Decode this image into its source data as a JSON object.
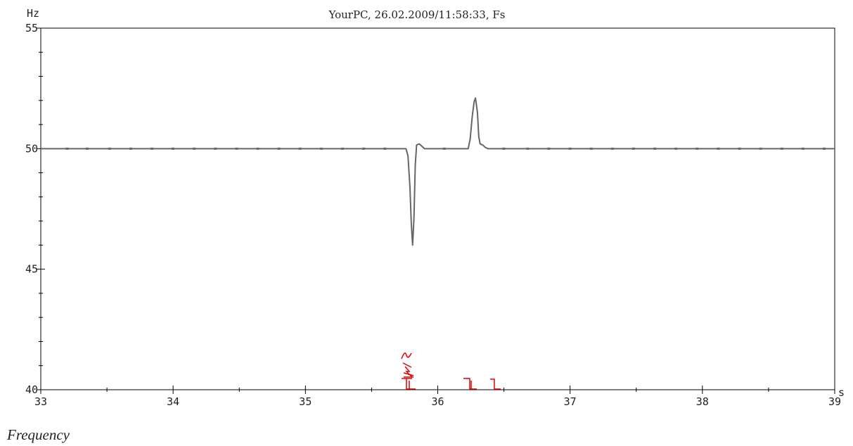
{
  "chart_data": {
    "type": "line",
    "title": "YourPC, 26.02.2009/11:58:33, Fs",
    "xlabel": "s",
    "ylabel": "Hz",
    "caption": "Frequency",
    "xlim": [
      33,
      39
    ],
    "ylim": [
      40,
      55
    ],
    "x_ticks": [
      33,
      34,
      35,
      36,
      37,
      38,
      39
    ],
    "y_ticks": [
      40,
      45,
      50,
      55
    ],
    "x_minor_step": 0.5,
    "y_minor_step": 1,
    "grid": false,
    "line_color": "#666666",
    "marker_color": "#e00000",
    "series": [
      {
        "points": [
          [
            33.0,
            50.0
          ],
          [
            35.76,
            50.0
          ],
          [
            35.775,
            49.7
          ],
          [
            35.79,
            48.4
          ],
          [
            35.8,
            46.9
          ],
          [
            35.81,
            46.0
          ],
          [
            35.82,
            47.1
          ],
          [
            35.83,
            49.3
          ],
          [
            35.84,
            50.15
          ],
          [
            35.86,
            50.2
          ],
          [
            35.88,
            50.1
          ],
          [
            35.9,
            50.0
          ],
          [
            36.23,
            50.0
          ],
          [
            36.245,
            50.4
          ],
          [
            36.26,
            51.3
          ],
          [
            36.275,
            51.95
          ],
          [
            36.285,
            52.1
          ],
          [
            36.3,
            51.5
          ],
          [
            36.31,
            50.5
          ],
          [
            36.32,
            50.2
          ],
          [
            36.34,
            50.15
          ],
          [
            36.36,
            50.05
          ],
          [
            36.38,
            50.0
          ],
          [
            39.0,
            50.0
          ]
        ]
      }
    ],
    "markers_x": [
      33.2,
      33.35,
      33.52,
      33.68,
      33.84,
      34.0,
      34.16,
      34.32,
      34.48,
      34.64,
      34.8,
      34.96,
      35.12,
      35.28,
      35.44,
      35.6,
      36.05,
      36.5,
      36.68,
      36.84,
      37.0,
      37.16,
      37.32,
      37.48,
      37.64,
      37.8,
      37.96,
      38.12,
      38.28,
      38.44,
      38.6,
      38.76,
      38.92
    ]
  }
}
